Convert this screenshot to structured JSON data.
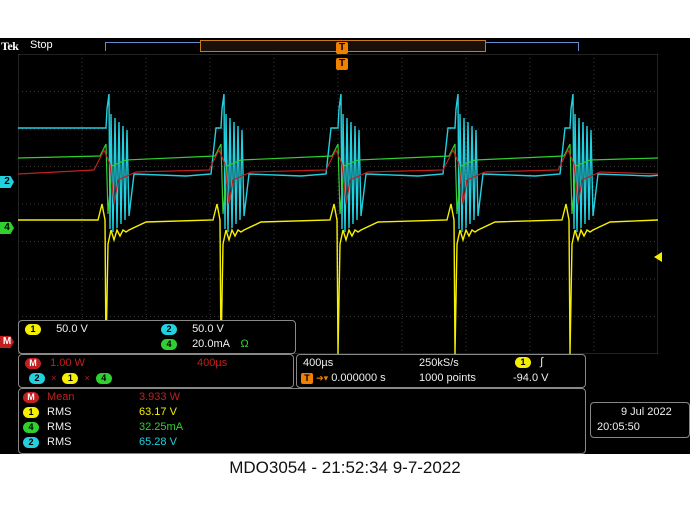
{
  "header": {
    "brand": "Tek",
    "run_state": "Stop"
  },
  "trigger_marker": "T",
  "channel_markers": {
    "ch2": "2",
    "ch4": "4",
    "math": "M"
  },
  "scales": {
    "ch1": {
      "num": "1",
      "value": "50.0 V"
    },
    "ch2": {
      "num": "2",
      "value": "50.0 V"
    },
    "ch4": {
      "num": "4",
      "value": "20.0mA",
      "extra": "Ω"
    }
  },
  "math": {
    "label": "M",
    "scale": "1.00 W",
    "time": "400µs",
    "ops": [
      "2",
      "1",
      "4"
    ],
    "op_symbol": "×"
  },
  "timebase": {
    "horizontal": "400µs",
    "sample_rate": "250kS/s",
    "delay": "0.000000 s",
    "record": "1000 points",
    "trig_src": "1",
    "trig_slope": "∫",
    "trig_level": "-94.0 V",
    "delay_icon": "T"
  },
  "measurements": [
    {
      "src": "M",
      "name": "Mean",
      "value": "3.933 W",
      "color": "red"
    },
    {
      "src": "1",
      "name": "RMS",
      "value": "63.17 V",
      "color": "yellow"
    },
    {
      "src": "4",
      "name": "RMS",
      "value": "32.25mA",
      "color": "green"
    },
    {
      "src": "2",
      "name": "RMS",
      "value": "65.28 V",
      "color": "cyan"
    }
  ],
  "datetime": {
    "date": "9 Jul  2022",
    "time": "20:05:50"
  },
  "caption": "MDO3054 - 21:52:34    9-7-2022",
  "colors": {
    "ch1": "#f5f000",
    "ch2": "#22d0e0",
    "ch4": "#30d030",
    "math": "#c02020"
  }
}
